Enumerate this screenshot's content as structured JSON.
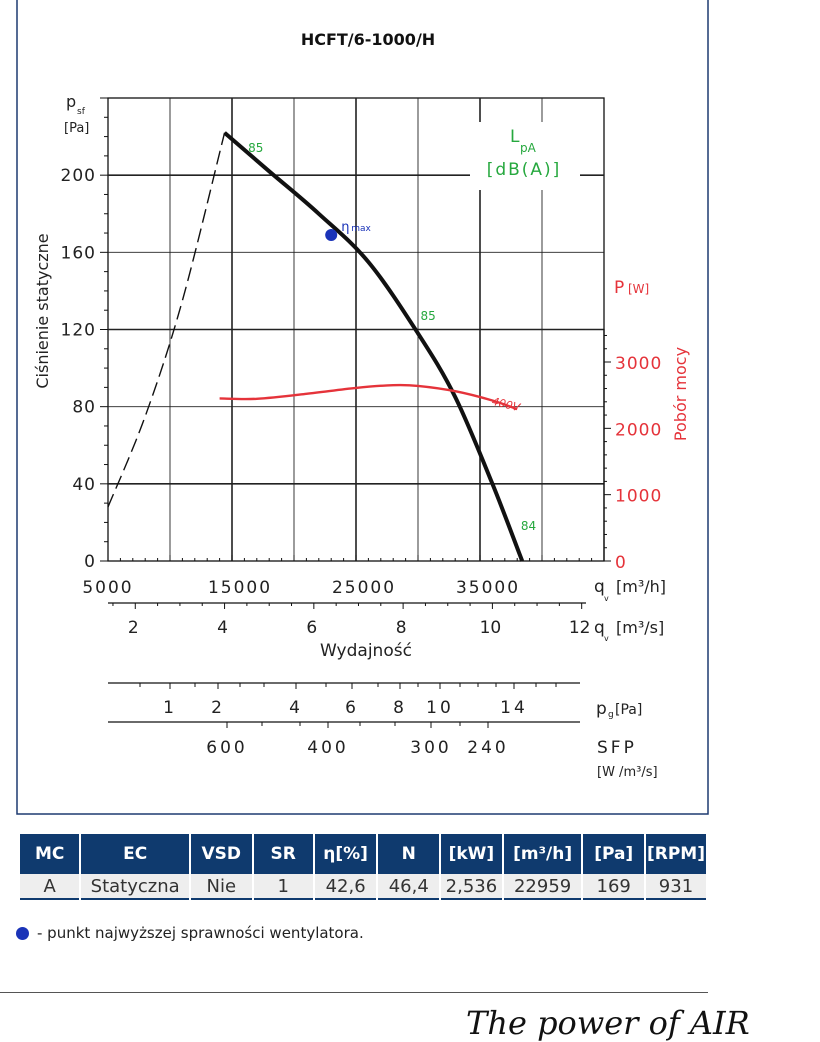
{
  "chart_data": {
    "type": "line",
    "title": "HCFT/6-1000/H",
    "ylabel_symbol": "p",
    "ylabel_sub": "sf",
    "ylabel_unit": "[Pa]",
    "ylabel_text": "Ciśnienie statyczne",
    "ylim": [
      0,
      240
    ],
    "y_ticks": [
      "0",
      "40",
      "80",
      "120",
      "160",
      "200"
    ],
    "x_m3h_ticks": [
      "5000",
      "15000",
      "25000",
      "35000"
    ],
    "x_m3h_label": "q",
    "x_m3h_sub": "v",
    "x_m3h_unit": "[m³/h]",
    "x_m3s_ticks": [
      "2",
      "4",
      "6",
      "8",
      "10",
      "12"
    ],
    "x_m3s_label": "q",
    "x_m3s_sub": "v",
    "x_m3s_unit": "[m³/s]",
    "xlabel": "Wydajność",
    "xlim_m3h": [
      5000,
      45000
    ],
    "power_axis": {
      "label": "P",
      "unit": "[W]",
      "text": "Pobór mocy",
      "ticks": [
        "0",
        "1000",
        "2000",
        "3000"
      ],
      "lim": [
        0,
        3000
      ]
    },
    "lpa_label": {
      "main": "L",
      "sub": "pA",
      "unit": "[dB(A)]"
    },
    "eta_label": {
      "symbol": "η",
      "sub": "max"
    },
    "series": [
      {
        "name": "pressure",
        "x": [
          14400,
          18000,
          22000,
          26000,
          30000,
          33000,
          36000,
          38400
        ],
        "y": [
          222,
          202,
          180,
          155,
          118,
          85,
          40,
          0
        ]
      },
      {
        "name": "stall",
        "x": [
          5000,
          8000,
          11000,
          14400
        ],
        "y": [
          28,
          75,
          135,
          222
        ]
      },
      {
        "name": "400V",
        "x": [
          14000,
          17000,
          21000,
          25000,
          28000,
          30000,
          33000,
          36000,
          38000
        ],
        "y": [
          2450,
          2445,
          2520,
          2610,
          2650,
          2640,
          2560,
          2420,
          2290
        ]
      }
    ],
    "lpa_values": [
      {
        "x": 16300,
        "y": 212,
        "text": "85"
      },
      {
        "x": 30200,
        "y": 125,
        "text": "85"
      },
      {
        "x": 38300,
        "y": 16,
        "text": "84"
      }
    ],
    "eta_point": {
      "x": 23000,
      "y": 169
    },
    "pg_axis": {
      "label": "p",
      "sub": "g",
      "unit": "[Pa]",
      "ticks": [
        "1",
        "2",
        "4",
        "6",
        "8",
        "10",
        "14"
      ]
    },
    "sfp_axis": {
      "label": "SFP",
      "unit": "[W /m³/s]",
      "ticks": [
        "600",
        "400",
        "300",
        "240"
      ]
    }
  },
  "table": {
    "headers": [
      "MC",
      "EC",
      "VSD",
      "SR",
      "η[%]",
      "N",
      "[kW]",
      "[m³/h]",
      "[Pa]",
      "[RPM]"
    ],
    "row": [
      "A",
      "Statyczna",
      "Nie",
      "1",
      "42,6",
      "46,4",
      "2,536",
      "22959",
      "169",
      "931"
    ]
  },
  "legend_note": "- punkt najwyższej sprawności wentylatora.",
  "brand": "The power of AIR",
  "colors": {
    "curve": "#111111",
    "power": "#e5333a",
    "lpa": "#26a83e",
    "eta": "#1a33b8",
    "header": "#0f3a6e",
    "frame": "#1d3a70"
  }
}
